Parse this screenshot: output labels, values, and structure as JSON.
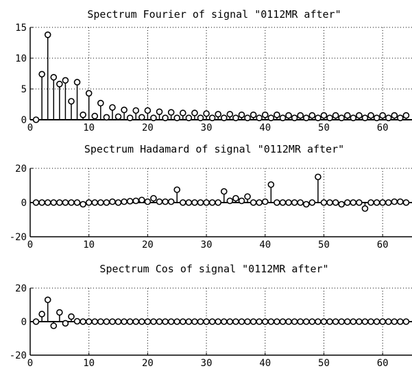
{
  "chart_data": [
    {
      "type": "stem",
      "title": "Spectrum Fourier of signal \"0112MR after\"",
      "xlim": [
        0,
        65
      ],
      "ylim": [
        0,
        15
      ],
      "xticks": [
        0,
        10,
        20,
        30,
        40,
        50,
        60
      ],
      "yticks": [
        0,
        5,
        10,
        15
      ],
      "grid": true,
      "x": [
        1,
        2,
        3,
        4,
        5,
        6,
        7,
        8,
        9,
        10,
        11,
        12,
        13,
        14,
        15,
        16,
        17,
        18,
        19,
        20,
        21,
        22,
        23,
        24,
        25,
        26,
        27,
        28,
        29,
        30,
        31,
        32,
        33,
        34,
        35,
        36,
        37,
        38,
        39,
        40,
        41,
        42,
        43,
        44,
        45,
        46,
        47,
        48,
        49,
        50,
        51,
        52,
        53,
        54,
        55,
        56,
        57,
        58,
        59,
        60,
        61,
        62,
        63,
        64
      ],
      "values": [
        0,
        7.4,
        13.8,
        6.9,
        5.8,
        6.4,
        3.0,
        6.1,
        0.8,
        4.3,
        0.6,
        2.7,
        0.4,
        2.0,
        0.5,
        1.6,
        0.3,
        1.5,
        0.4,
        1.5,
        0.3,
        1.3,
        0.3,
        1.2,
        0.3,
        1.1,
        0.3,
        1.1,
        0.3,
        1.0,
        0.3,
        0.9,
        0.3,
        0.9,
        0.3,
        0.8,
        0.3,
        0.8,
        0.3,
        0.8,
        0.3,
        0.8,
        0.3,
        0.7,
        0.3,
        0.7,
        0.3,
        0.7,
        0.3,
        0.7,
        0.3,
        0.7,
        0.3,
        0.7,
        0.3,
        0.7,
        0.3,
        0.7,
        0.3,
        0.7,
        0.3,
        0.7,
        0.3,
        0.7
      ]
    },
    {
      "type": "stem",
      "title": "Spectrum Hadamard of signal \"0112MR after\"",
      "xlim": [
        0,
        65
      ],
      "ylim": [
        -20,
        20
      ],
      "xticks": [
        0,
        10,
        20,
        30,
        40,
        50,
        60
      ],
      "yticks": [
        -20,
        0,
        20
      ],
      "grid": true,
      "x": [
        1,
        2,
        3,
        4,
        5,
        6,
        7,
        8,
        9,
        10,
        11,
        12,
        13,
        14,
        15,
        16,
        17,
        18,
        19,
        20,
        21,
        22,
        23,
        24,
        25,
        26,
        27,
        28,
        29,
        30,
        31,
        32,
        33,
        34,
        35,
        36,
        37,
        38,
        39,
        40,
        41,
        42,
        43,
        44,
        45,
        46,
        47,
        48,
        49,
        50,
        51,
        52,
        53,
        54,
        55,
        56,
        57,
        58,
        59,
        60,
        61,
        62,
        63,
        64
      ],
      "values": [
        0,
        0,
        0,
        0,
        0,
        0,
        0,
        0,
        -1,
        0,
        0,
        0,
        0,
        0.5,
        0,
        0.5,
        0.8,
        1,
        1.5,
        0.5,
        2.5,
        0.5,
        0.5,
        0.5,
        7.5,
        0,
        0,
        0,
        0,
        0,
        0,
        0,
        6.5,
        1,
        2.5,
        1,
        3.5,
        0,
        0,
        0.5,
        10.5,
        0,
        0,
        0,
        0,
        0,
        -1,
        0,
        15,
        0,
        0,
        0,
        -1,
        0,
        0,
        0,
        -3.5,
        0,
        0,
        0,
        0,
        0.5,
        0.5,
        0
      ]
    },
    {
      "type": "stem",
      "title": "Spectrum Cos of signal \"0112MR after\"",
      "xlim": [
        0,
        65
      ],
      "ylim": [
        -20,
        20
      ],
      "xticks": [
        0,
        10,
        20,
        30,
        40,
        50,
        60
      ],
      "yticks": [
        -20,
        0,
        20
      ],
      "grid": true,
      "x": [
        1,
        2,
        3,
        4,
        5,
        6,
        7,
        8,
        9,
        10,
        11,
        12,
        13,
        14,
        15,
        16,
        17,
        18,
        19,
        20,
        21,
        22,
        23,
        24,
        25,
        26,
        27,
        28,
        29,
        30,
        31,
        32,
        33,
        34,
        35,
        36,
        37,
        38,
        39,
        40,
        41,
        42,
        43,
        44,
        45,
        46,
        47,
        48,
        49,
        50,
        51,
        52,
        53,
        54,
        55,
        56,
        57,
        58,
        59,
        60,
        61,
        62,
        63,
        64
      ],
      "values": [
        0,
        4.5,
        13,
        -2.5,
        5.5,
        -1,
        3,
        0.2,
        0,
        0,
        0,
        0,
        0,
        0,
        0,
        0,
        0,
        0,
        0,
        0,
        0,
        0,
        0,
        0,
        0,
        0,
        0,
        0,
        0,
        0,
        0,
        0,
        0,
        0,
        0,
        0,
        0,
        0,
        0,
        0,
        0,
        0,
        0,
        0,
        0,
        0,
        0,
        0,
        0,
        0,
        0,
        0,
        0,
        0,
        0,
        0,
        0,
        0,
        0,
        0,
        0,
        0,
        0,
        0
      ]
    }
  ]
}
